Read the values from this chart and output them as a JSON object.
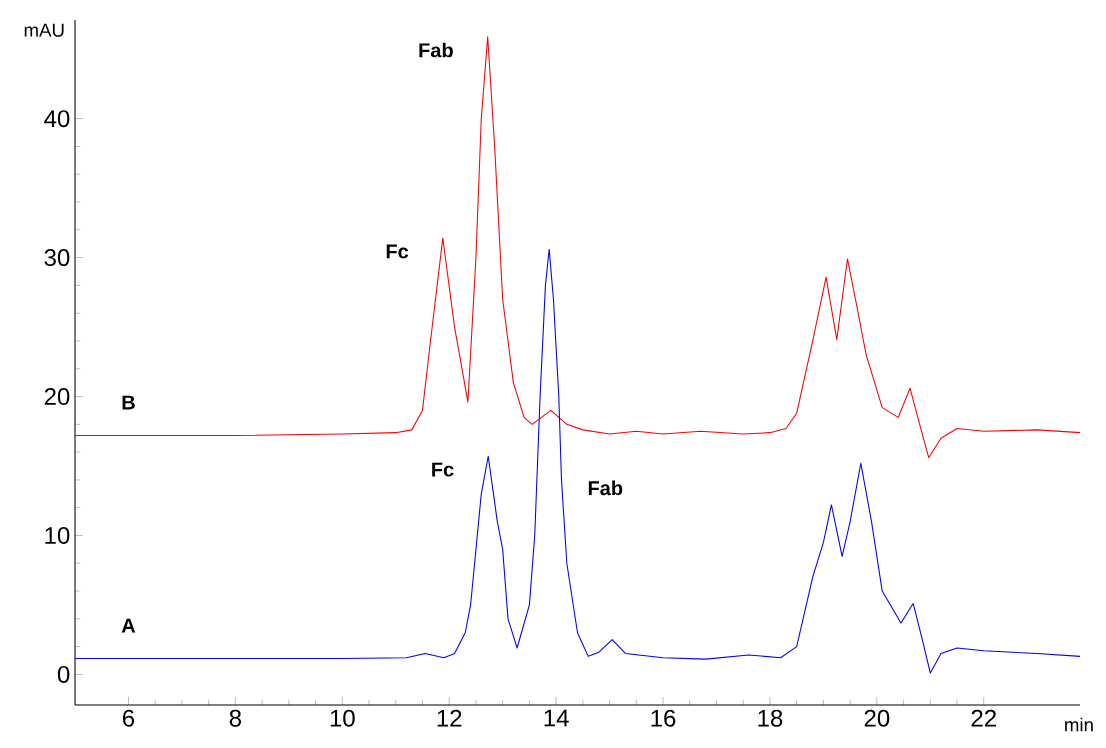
{
  "chart_data": {
    "type": "line",
    "xlabel": "min",
    "ylabel": "mAU",
    "xlim": [
      5.0,
      23.8
    ],
    "ylim": [
      -2.2,
      47.1
    ],
    "xticks": [
      6,
      8,
      10,
      12,
      14,
      16,
      18,
      20,
      22
    ],
    "yticks": [
      0,
      10,
      20,
      30,
      40
    ],
    "grid": false,
    "marker": "none",
    "line_style": "solid",
    "series": [
      {
        "name": "B",
        "color": "#ff0000",
        "x": [
          5.0,
          8,
          10,
          11.0,
          11.3,
          11.5,
          11.65,
          11.88,
          12.1,
          12.35,
          12.5,
          12.6,
          12.72,
          12.85,
          13.0,
          13.2,
          13.4,
          13.55,
          13.9,
          14.2,
          14.5,
          15.0,
          15.5,
          16.0,
          16.7,
          17.5,
          18.0,
          18.3,
          18.5,
          18.8,
          19.05,
          19.25,
          19.45,
          19.6,
          19.8,
          20.1,
          20.4,
          20.62,
          20.8,
          20.97,
          21.2,
          21.5,
          22.0,
          23.0,
          23.8
        ],
        "values": [
          17.2,
          17.2,
          17.3,
          17.4,
          17.6,
          19,
          24,
          31.4,
          25,
          19.6,
          30,
          40,
          45.9,
          38,
          27,
          21,
          18.5,
          18.0,
          19.0,
          18.0,
          17.6,
          17.3,
          17.5,
          17.3,
          17.5,
          17.3,
          17.4,
          17.7,
          18.8,
          24,
          28.6,
          24.1,
          29.9,
          27,
          23,
          19.2,
          18.5,
          20.6,
          18,
          15.6,
          17,
          17.7,
          17.5,
          17.6,
          17.4
        ]
      },
      {
        "name": "A",
        "color": "#0000ff",
        "x": [
          5.0,
          8,
          10,
          11.2,
          11.55,
          11.9,
          12.1,
          12.3,
          12.4,
          12.5,
          12.6,
          12.73,
          12.9,
          13.0,
          13.1,
          13.27,
          13.5,
          13.6,
          13.7,
          13.8,
          13.87,
          13.95,
          14.05,
          14.1,
          14.2,
          14.4,
          14.6,
          14.8,
          15.05,
          15.3,
          16.0,
          16.8,
          17.6,
          18.2,
          18.5,
          18.8,
          19.0,
          19.15,
          19.35,
          19.5,
          19.7,
          19.9,
          20.1,
          20.45,
          20.68,
          20.85,
          21.0,
          21.2,
          21.5,
          22.0,
          22.5,
          23.0,
          23.8
        ],
        "values": [
          1.15,
          1.15,
          1.15,
          1.2,
          1.5,
          1.2,
          1.5,
          3,
          5,
          9,
          13,
          15.7,
          11,
          9,
          4,
          1.9,
          5,
          10,
          20,
          28,
          30.6,
          27,
          20,
          14,
          8,
          3,
          1.3,
          1.6,
          2.5,
          1.5,
          1.2,
          1.1,
          1.4,
          1.2,
          2,
          7,
          9.5,
          12.2,
          8.5,
          11,
          15.2,
          11,
          6,
          3.7,
          5.1,
          2.5,
          0.1,
          1.5,
          1.9,
          1.7,
          1.6,
          1.5,
          1.3
        ]
      }
    ],
    "annotations": [
      {
        "text": "Fab",
        "x": 12.72,
        "y": 45.9
      },
      {
        "text": "Fc",
        "x": 11.88,
        "y": 31.4
      },
      {
        "text": "Fc",
        "x": 12.73,
        "y": 15.7
      },
      {
        "text": "Fab",
        "x": 14.1,
        "y": 14
      }
    ]
  }
}
